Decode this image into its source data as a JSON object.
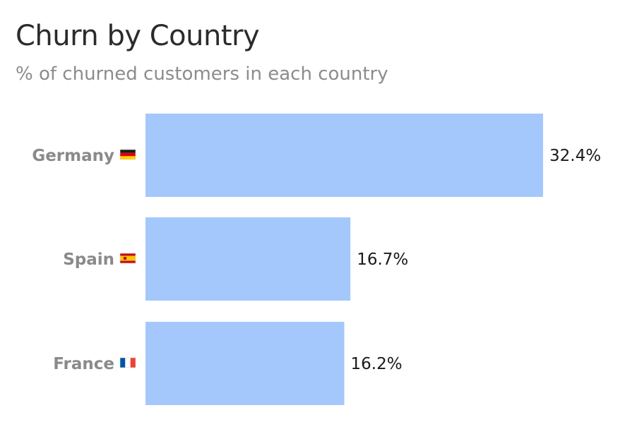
{
  "chart_data": {
    "type": "bar",
    "orientation": "horizontal",
    "title": "Churn by Country",
    "subtitle": "% of churned customers in each country",
    "categories": [
      "Germany",
      "Spain",
      "France"
    ],
    "flags": [
      "de",
      "es",
      "fr"
    ],
    "values": [
      32.4,
      16.7,
      16.2
    ],
    "value_labels": [
      "32.4%",
      "16.7%",
      "16.2%"
    ],
    "unit": "%",
    "xlim": [
      0,
      32.4
    ],
    "grid": false,
    "bar_color": "#a4c8fb"
  }
}
